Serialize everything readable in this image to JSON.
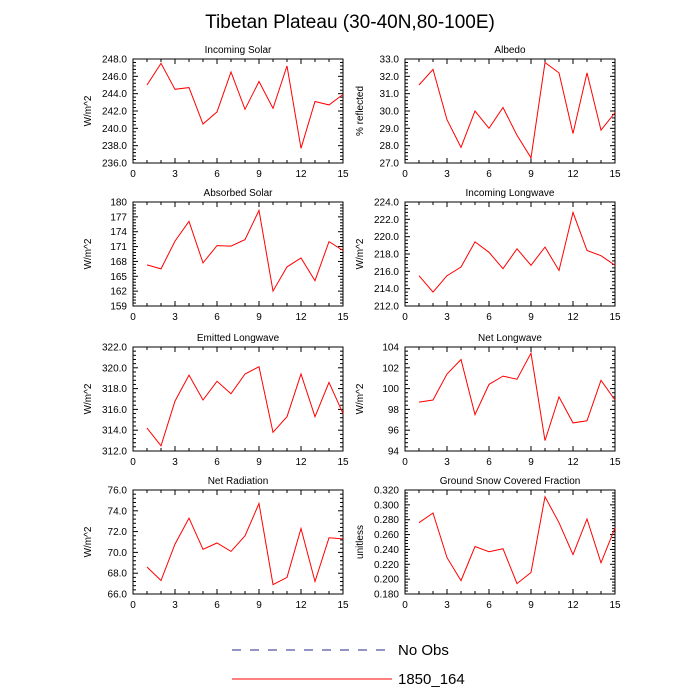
{
  "figure": {
    "title": "Tibetan Plateau (30-40N,80-100E)"
  },
  "legend": {
    "entries": [
      {
        "label": "No Obs",
        "color": "#2a2a8a",
        "dash": true
      },
      {
        "label": "1850_164",
        "color": "#ff0000",
        "dash": false
      }
    ]
  },
  "chart_data": [
    {
      "type": "line",
      "title": "Incoming Solar",
      "ylabel": "W/m^2",
      "xlim": [
        0,
        15
      ],
      "xticks": [
        0,
        3,
        6,
        9,
        12,
        15
      ],
      "ylim": [
        236,
        248
      ],
      "yticks": [
        236,
        238,
        240,
        242,
        244,
        246,
        248
      ],
      "ydecimals": 1,
      "series": [
        {
          "x": [
            1,
            2,
            3,
            4,
            5,
            6,
            7,
            8,
            9,
            10,
            11,
            12,
            13,
            14,
            15
          ],
          "values": [
            245.0,
            247.5,
            244.5,
            244.7,
            240.5,
            241.9,
            246.5,
            242.2,
            245.4,
            242.3,
            247.2,
            237.7,
            243.1,
            242.7,
            243.9
          ]
        }
      ]
    },
    {
      "type": "line",
      "title": "Albedo",
      "ylabel": "% reflected",
      "xlim": [
        0,
        15
      ],
      "xticks": [
        0,
        3,
        6,
        9,
        12,
        15
      ],
      "ylim": [
        27,
        33
      ],
      "yticks": [
        27,
        28,
        29,
        30,
        31,
        32,
        33
      ],
      "ydecimals": 1,
      "series": [
        {
          "x": [
            1,
            2,
            3,
            4,
            5,
            6,
            7,
            8,
            9,
            10,
            11,
            12,
            13,
            14,
            15
          ],
          "values": [
            31.5,
            32.4,
            29.5,
            27.9,
            30.0,
            29.0,
            30.2,
            28.6,
            27.3,
            32.8,
            32.2,
            28.7,
            32.2,
            28.9,
            29.9
          ]
        }
      ]
    },
    {
      "type": "line",
      "title": "Absorbed Solar",
      "ylabel": "W/m^2",
      "xlim": [
        0,
        15
      ],
      "xticks": [
        0,
        3,
        6,
        9,
        12,
        15
      ],
      "ylim": [
        159,
        180
      ],
      "yticks": [
        159,
        162,
        165,
        168,
        171,
        174,
        177,
        180
      ],
      "ydecimals": 0,
      "series": [
        {
          "x": [
            1,
            2,
            3,
            4,
            5,
            6,
            7,
            8,
            9,
            10,
            11,
            12,
            13,
            14,
            15
          ],
          "values": [
            167.3,
            166.5,
            172.1,
            176.1,
            167.7,
            171.2,
            171.1,
            172.4,
            178.3,
            162.0,
            166.9,
            168.7,
            164.1,
            172.0,
            170.2
          ]
        }
      ]
    },
    {
      "type": "line",
      "title": "Incoming Longwave",
      "ylabel": "W/m^2",
      "xlim": [
        0,
        15
      ],
      "xticks": [
        0,
        3,
        6,
        9,
        12,
        15
      ],
      "ylim": [
        212,
        224
      ],
      "yticks": [
        212,
        214,
        216,
        218,
        220,
        222,
        224
      ],
      "ydecimals": 1,
      "series": [
        {
          "x": [
            1,
            2,
            3,
            4,
            5,
            6,
            7,
            8,
            9,
            10,
            11,
            12,
            13,
            14,
            15
          ],
          "values": [
            215.5,
            213.6,
            215.5,
            216.5,
            219.4,
            218.2,
            216.3,
            218.6,
            216.7,
            218.8,
            216.1,
            222.8,
            218.4,
            217.8,
            216.7
          ]
        }
      ]
    },
    {
      "type": "line",
      "title": "Emitted Longwave",
      "ylabel": "W/m^2",
      "xlim": [
        0,
        15
      ],
      "xticks": [
        0,
        3,
        6,
        9,
        12,
        15
      ],
      "ylim": [
        312,
        322
      ],
      "yticks": [
        312,
        314,
        316,
        318,
        320,
        322
      ],
      "ydecimals": 1,
      "series": [
        {
          "x": [
            1,
            2,
            3,
            4,
            5,
            6,
            7,
            8,
            9,
            10,
            11,
            12,
            13,
            14,
            15
          ],
          "values": [
            314.2,
            312.5,
            316.8,
            319.3,
            316.9,
            318.7,
            317.5,
            319.4,
            320.1,
            313.8,
            315.3,
            319.4,
            315.3,
            318.6,
            315.6
          ]
        }
      ]
    },
    {
      "type": "line",
      "title": "Net Longwave",
      "ylabel": "W/m^2",
      "xlim": [
        0,
        15
      ],
      "xticks": [
        0,
        3,
        6,
        9,
        12,
        15
      ],
      "ylim": [
        94,
        104
      ],
      "yticks": [
        94,
        96,
        98,
        100,
        102,
        104
      ],
      "ydecimals": 0,
      "series": [
        {
          "x": [
            1,
            2,
            3,
            4,
            5,
            6,
            7,
            8,
            9,
            10,
            11,
            12,
            13,
            14,
            15
          ],
          "values": [
            98.7,
            98.9,
            101.4,
            102.8,
            97.5,
            100.4,
            101.2,
            100.9,
            103.4,
            95.0,
            99.2,
            96.7,
            96.9,
            100.8,
            98.9
          ]
        }
      ]
    },
    {
      "type": "line",
      "title": "Net Radiation",
      "ylabel": "W/m^2",
      "xlim": [
        0,
        15
      ],
      "xticks": [
        0,
        3,
        6,
        9,
        12,
        15
      ],
      "ylim": [
        66,
        76
      ],
      "yticks": [
        66,
        68,
        70,
        72,
        74,
        76
      ],
      "ydecimals": 1,
      "series": [
        {
          "x": [
            1,
            2,
            3,
            4,
            5,
            6,
            7,
            8,
            9,
            10,
            11,
            12,
            13,
            14,
            15
          ],
          "values": [
            68.6,
            67.3,
            70.8,
            73.3,
            70.3,
            70.9,
            70.1,
            71.6,
            74.7,
            66.9,
            67.6,
            72.3,
            67.2,
            71.4,
            71.3
          ]
        }
      ]
    },
    {
      "type": "line",
      "title": "Ground Snow Covered Fraction",
      "ylabel": "unitless",
      "xlim": [
        0,
        15
      ],
      "xticks": [
        0,
        3,
        6,
        9,
        12,
        15
      ],
      "ylim": [
        0.18,
        0.32
      ],
      "yticks": [
        0.18,
        0.2,
        0.22,
        0.24,
        0.26,
        0.28,
        0.3,
        0.32
      ],
      "ydecimals": 3,
      "series": [
        {
          "x": [
            1,
            2,
            3,
            4,
            5,
            6,
            7,
            8,
            9,
            10,
            11,
            12,
            13,
            14,
            15
          ],
          "values": [
            0.276,
            0.289,
            0.229,
            0.198,
            0.244,
            0.237,
            0.241,
            0.194,
            0.209,
            0.311,
            0.276,
            0.233,
            0.281,
            0.222,
            0.269
          ]
        }
      ]
    }
  ]
}
